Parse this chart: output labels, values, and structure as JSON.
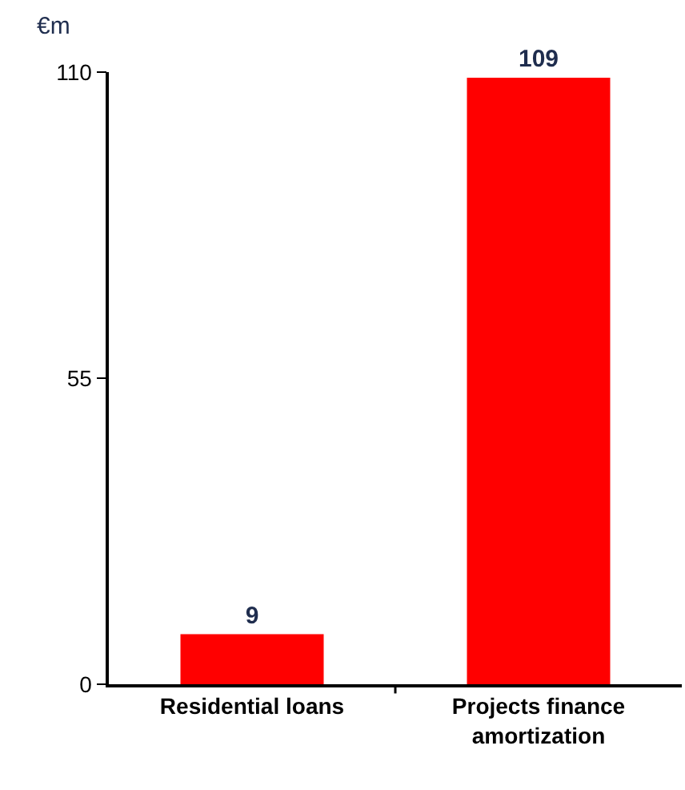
{
  "chart_data": {
    "type": "bar",
    "ylabel": "€m",
    "categories": [
      "Residential loans",
      "Projects finance amortization"
    ],
    "series": [
      {
        "color": "#ff0000",
        "values": [
          9,
          109
        ]
      }
    ],
    "ylim": [
      0,
      110
    ],
    "yticks": [
      0,
      55,
      110
    ],
    "data_labels": true
  }
}
